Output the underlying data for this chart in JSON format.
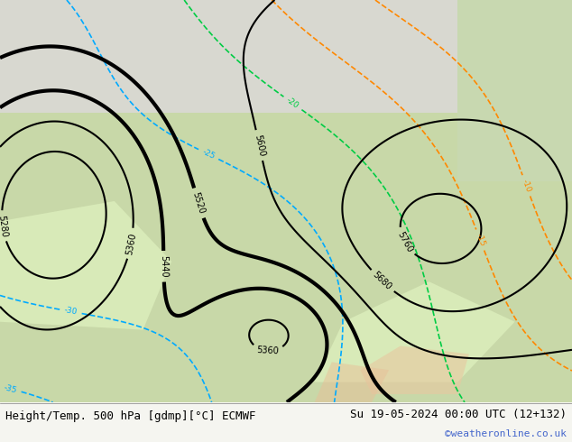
{
  "title_left": "Height/Temp. 500 hPa [gdmp][°C] ECMWF",
  "title_right": "Su 19-05-2024 00:00 UTC (12+132)",
  "watermark": "©weatheronline.co.uk",
  "figsize": [
    6.34,
    4.9
  ],
  "dpi": 100,
  "title_fontsize": 9,
  "watermark_color": "#4466cc"
}
